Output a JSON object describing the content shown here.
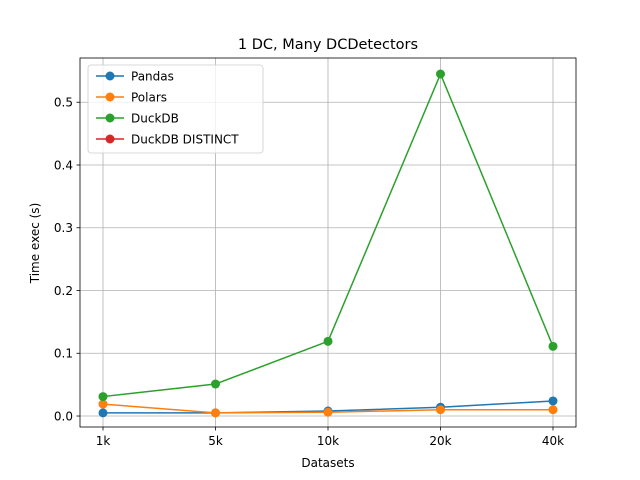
{
  "chart_data": {
    "type": "line",
    "title": "1 DC, Many DCDetectors",
    "xlabel": "Datasets",
    "ylabel": "Time exec (s)",
    "categories": [
      "1k",
      "5k",
      "10k",
      "20k",
      "40k"
    ],
    "yticks": [
      0.0,
      0.1,
      0.2,
      0.3,
      0.4,
      0.5
    ],
    "ytick_labels": [
      "0.0",
      "0.1",
      "0.2",
      "0.3",
      "0.4",
      "0.5"
    ],
    "ylim": [
      -0.0175,
      0.5705
    ],
    "grid": true,
    "legend_position": "top-left",
    "series": [
      {
        "name": "Pandas",
        "color": "#1f77b4",
        "values": [
          0.005,
          0.005,
          0.008,
          0.014,
          0.024
        ]
      },
      {
        "name": "Polars",
        "color": "#ff7f0e",
        "values": [
          0.019,
          0.005,
          0.006,
          0.01,
          0.01
        ]
      },
      {
        "name": "DuckDB",
        "color": "#2ca02c",
        "values": [
          0.031,
          0.051,
          0.119,
          0.545,
          0.111
        ]
      },
      {
        "name": "DuckDB DISTINCT",
        "color": "#d62728",
        "values": [
          null,
          null,
          null,
          null,
          null
        ]
      }
    ]
  }
}
